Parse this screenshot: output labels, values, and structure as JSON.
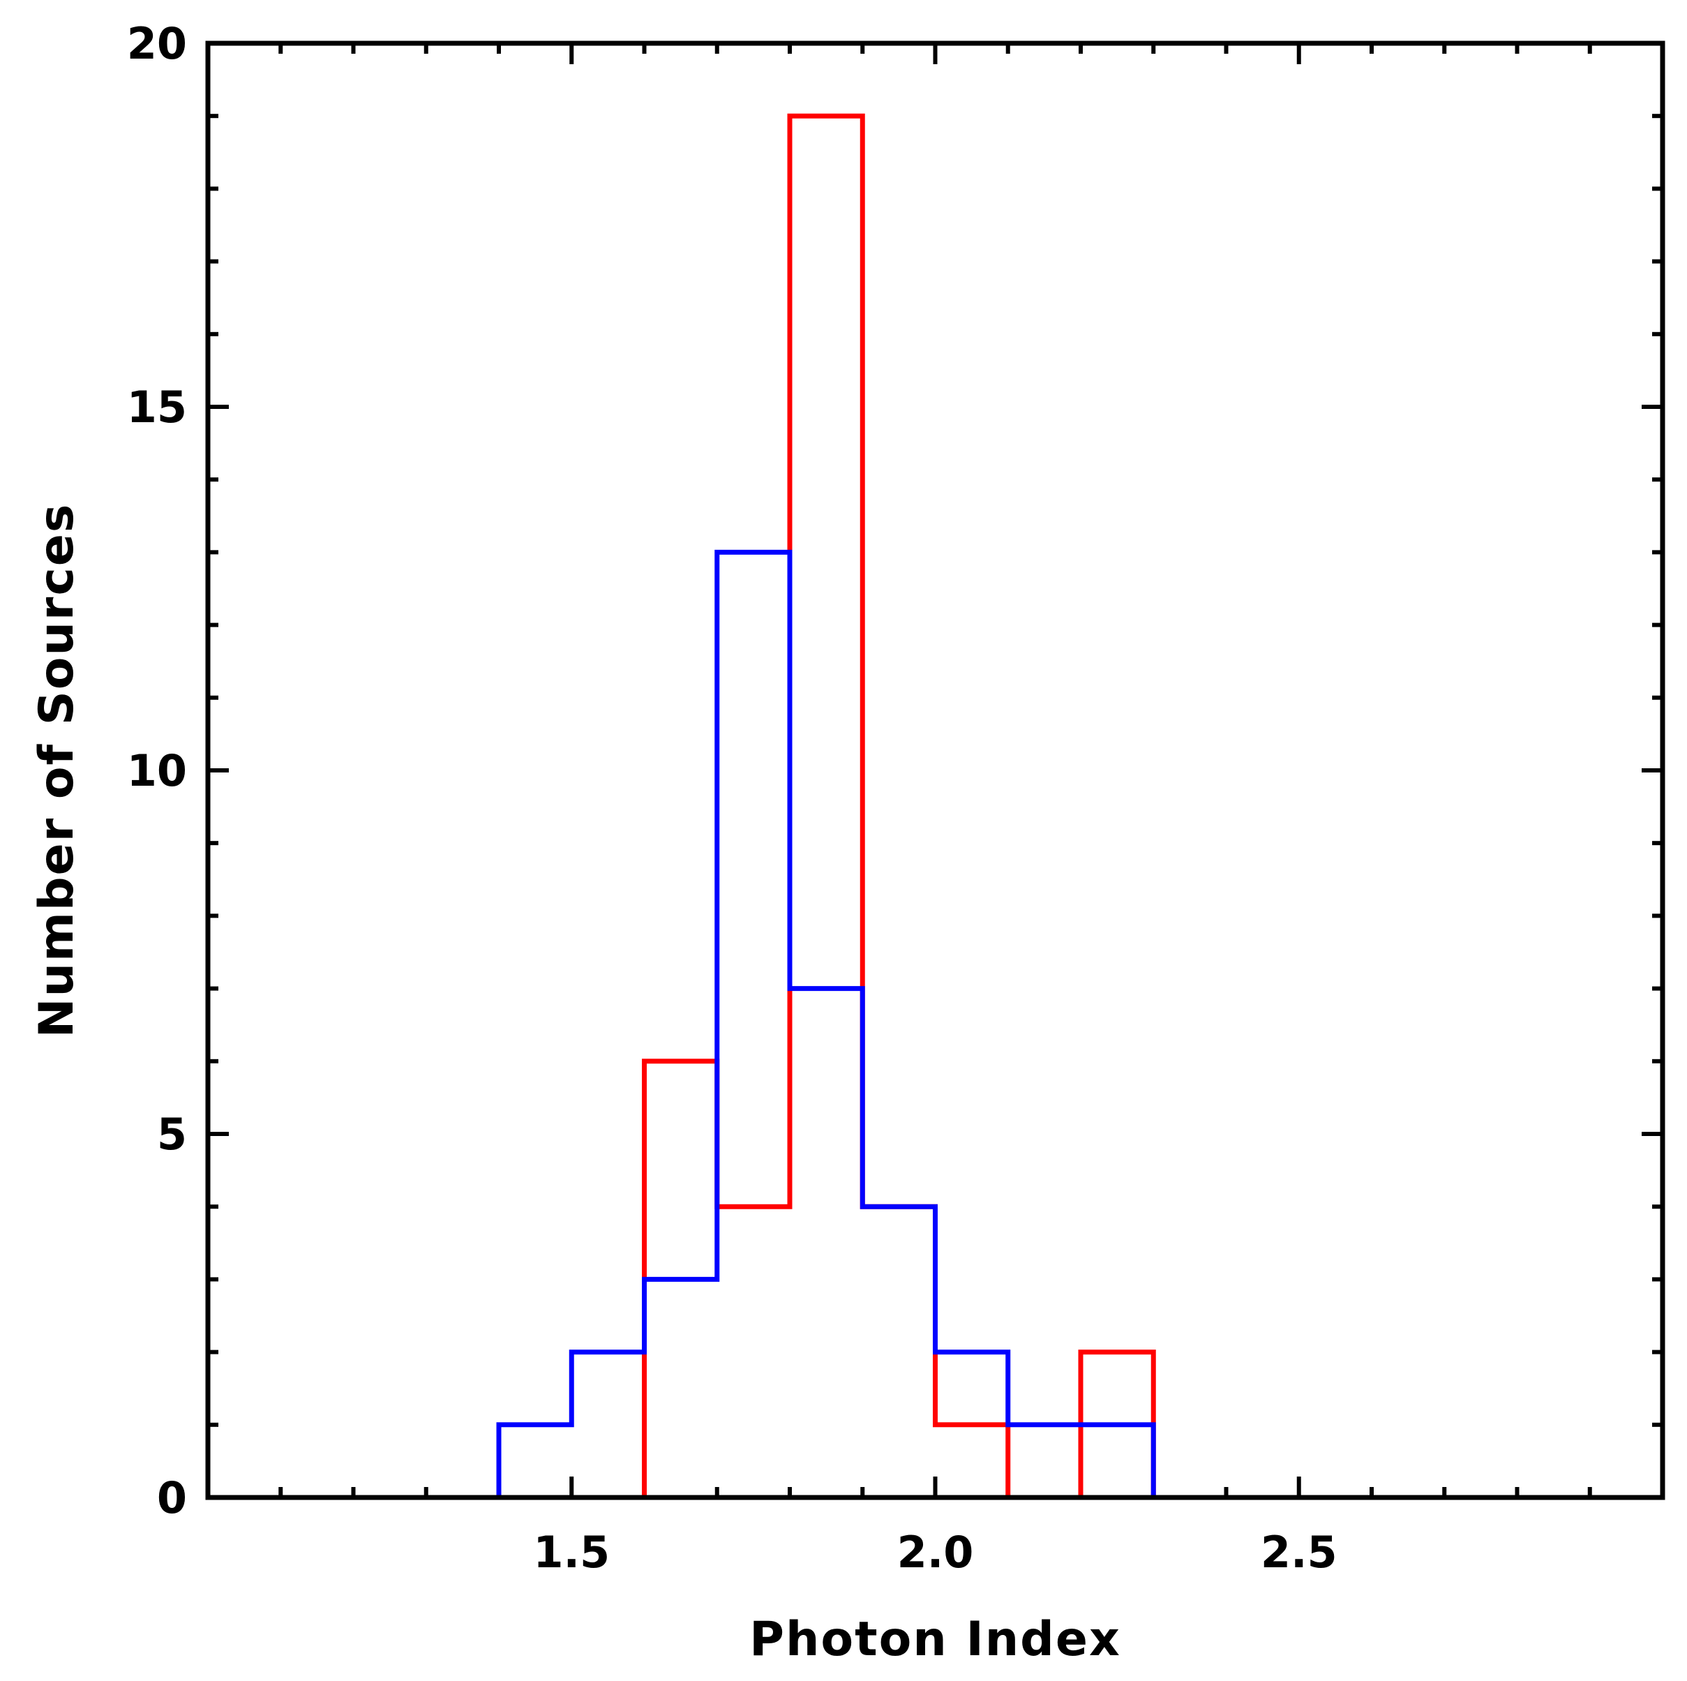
{
  "chart_data": {
    "type": "histogram-step",
    "title": "",
    "xlabel": "Photon Index",
    "ylabel": "Number of Sources",
    "xlim": [
      1.0,
      3.0
    ],
    "ylim": [
      0,
      20
    ],
    "x_major_ticks": [
      1.5,
      2.0,
      2.5
    ],
    "x_tick_labels": [
      "1.5",
      "2.0",
      "2.5"
    ],
    "x_minor_step": 0.1,
    "y_major_ticks": [
      0,
      5,
      10,
      15,
      20
    ],
    "y_tick_labels": [
      "0",
      "5",
      "10",
      "15",
      "20"
    ],
    "y_minor_step": 1,
    "bin_edges": [
      1.0,
      1.1,
      1.2,
      1.3,
      1.4,
      1.5,
      1.6,
      1.7,
      1.8,
      1.9,
      2.0,
      2.1,
      2.2,
      2.3,
      2.4,
      2.5,
      2.6,
      2.7,
      2.8,
      2.9,
      3.0
    ],
    "series": [
      {
        "name": "red",
        "color": "#ff0000",
        "values": [
          0,
          0,
          0,
          0,
          0,
          0,
          6,
          4,
          19,
          4,
          1,
          0,
          2,
          0,
          0,
          0,
          0,
          0,
          0,
          0
        ]
      },
      {
        "name": "blue",
        "color": "#0000ff",
        "values": [
          0,
          0,
          0,
          0,
          1,
          2,
          3,
          13,
          7,
          4,
          2,
          1,
          1,
          0,
          0,
          0,
          0,
          0,
          0,
          0
        ]
      }
    ],
    "grid": false,
    "legend": "none"
  }
}
